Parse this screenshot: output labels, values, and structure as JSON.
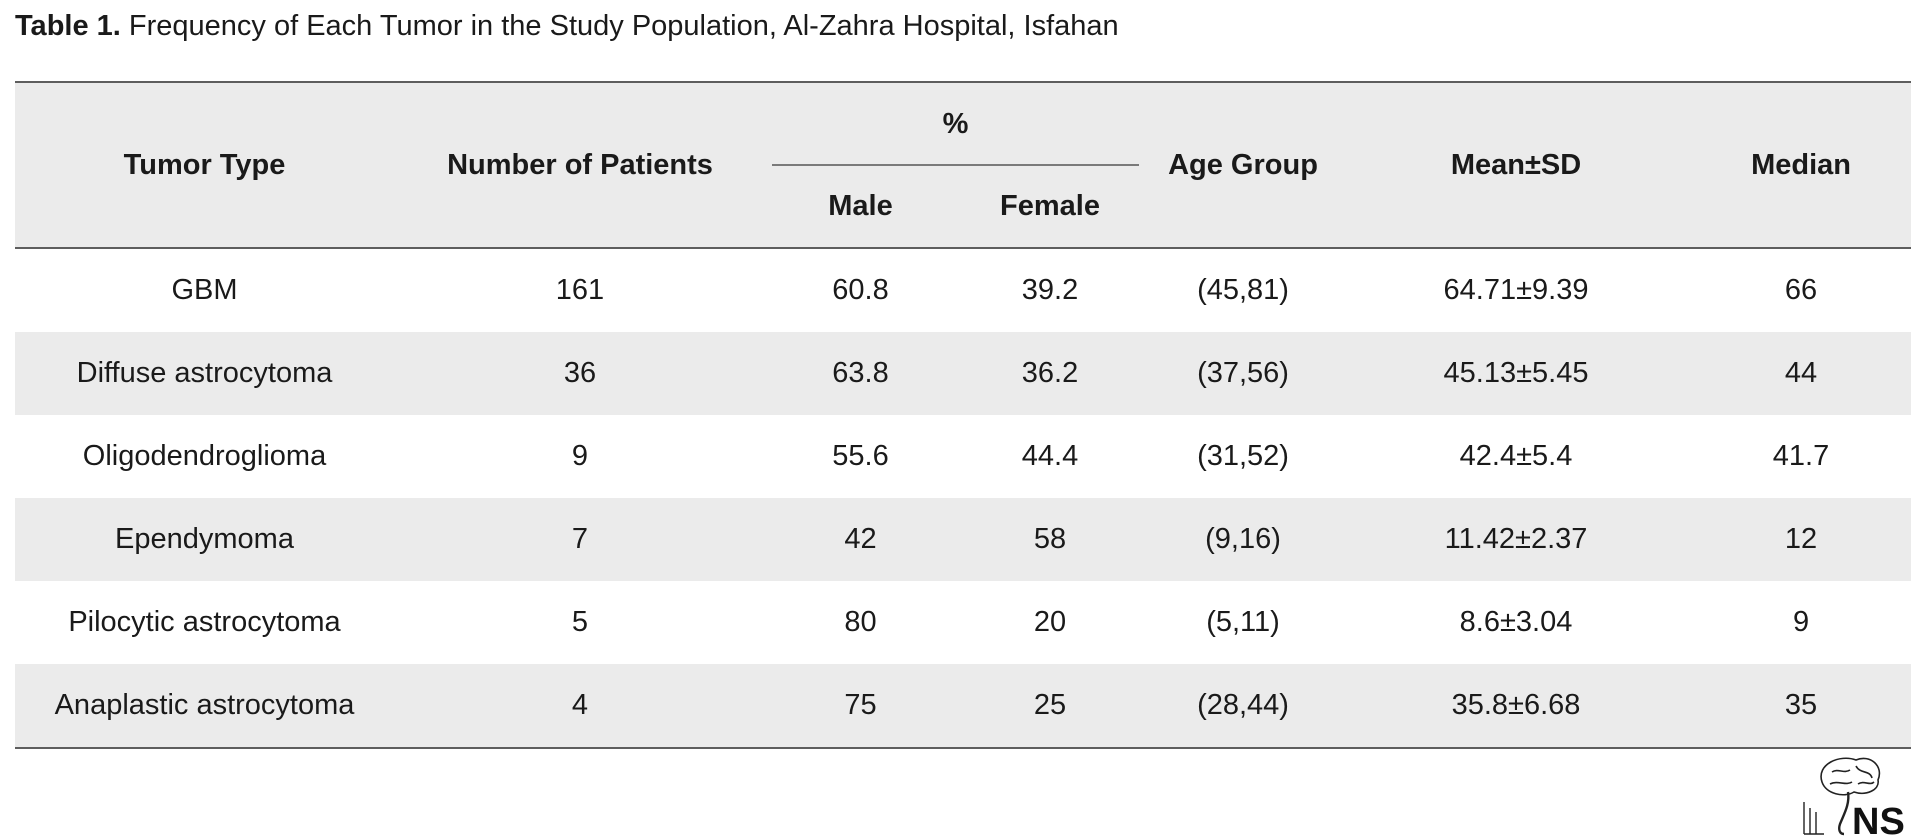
{
  "caption": {
    "label": "Table 1.",
    "text": " Frequency of Each Tumor in the Study Population, Al-Zahra Hospital, Isfahan"
  },
  "table": {
    "headers": {
      "tumor_type": "Tumor Type",
      "num_patients": "Number of Patients",
      "percent": "%",
      "male": "Male",
      "female": "Female",
      "age_group": "Age Group",
      "mean_sd": "Mean±SD",
      "median": "Median"
    },
    "rows": [
      {
        "type": "GBM",
        "n": "161",
        "male": "60.8",
        "female": "39.2",
        "age": "(45,81)",
        "mean_sd": "64.71±9.39",
        "median": "66"
      },
      {
        "type": "Diffuse astrocytoma",
        "n": "36",
        "male": "63.8",
        "female": "36.2",
        "age": "(37,56)",
        "mean_sd": "45.13±5.45",
        "median": "44"
      },
      {
        "type": "Oligodendroglioma",
        "n": "9",
        "male": "55.6",
        "female": "44.4",
        "age": "(31,52)",
        "mean_sd": "42.4±5.4",
        "median": "41.7"
      },
      {
        "type": "Ependymoma",
        "n": "7",
        "male": "42",
        "female": "58",
        "age": "(9,16)",
        "mean_sd": "11.42±2.37",
        "median": "12"
      },
      {
        "type": "Pilocytic astrocytoma",
        "n": "5",
        "male": "80",
        "female": "20",
        "age": "(5,11)",
        "mean_sd": "8.6±3.04",
        "median": "9"
      },
      {
        "type": "Anaplastic astrocytoma",
        "n": "4",
        "male": "75",
        "female": "25",
        "age": "(28,44)",
        "mean_sd": "35.8±6.68",
        "median": "35"
      }
    ]
  },
  "logo": {
    "text": "NS",
    "icon": "brain-spine-logo"
  }
}
